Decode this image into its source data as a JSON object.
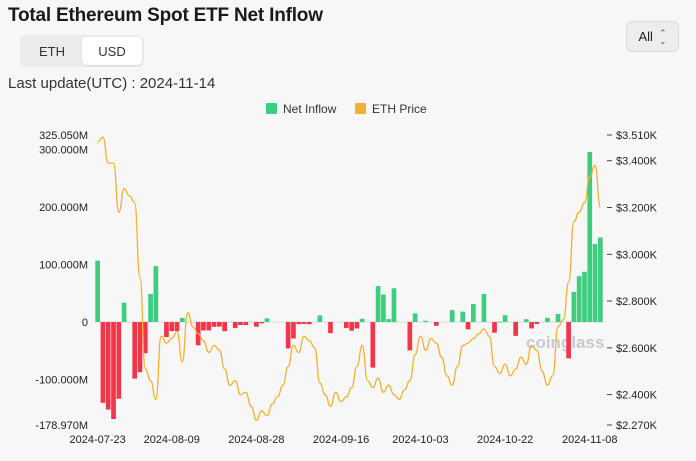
{
  "header": {
    "title": "Total Ethereum Spot ETF Net Inflow",
    "unit_tabs": [
      {
        "label": "ETH",
        "active": false
      },
      {
        "label": "USD",
        "active": true
      }
    ],
    "range_label": "All",
    "last_update": "Last update(UTC) : 2024-11-14"
  },
  "watermark": "coinglass",
  "colors": {
    "inflow_positive": "#3ecc7e",
    "inflow_negative": "#f1354a",
    "eth_price": "#f0b135",
    "background": "#f7f7f8"
  },
  "chart_data": {
    "type": "bar",
    "legend": [
      "Net Inflow",
      "ETH Price"
    ],
    "legend_position": "top-center",
    "x_ticks": [
      "2024-07-23",
      "2024-08-09",
      "2024-08-28",
      "2024-09-16",
      "2024-10-03",
      "2024-10-22",
      "2024-11-08"
    ],
    "left_axis": {
      "ticks": [
        "325.050M",
        "300.000M",
        "200.000M",
        "100.000M",
        "0",
        "-100.000M",
        "-178.970M"
      ],
      "range": [
        -178.97,
        325.05
      ],
      "unit": "M"
    },
    "right_axis": {
      "ticks": [
        "$3.510K",
        "$3.400K",
        "$3.200K",
        "$3.000K",
        "$2.800K",
        "$2.600K",
        "$2.400K",
        "$2.270K"
      ],
      "range": [
        2270,
        3510
      ]
    },
    "series": [
      {
        "name": "Net Inflow",
        "unit": "M USD",
        "values": [
          106.6,
          -140.4,
          -152.1,
          -168.6,
          -133.3,
          33.6,
          0.0,
          -98.3,
          -87.3,
          -54.4,
          48.7,
          97.2,
          0,
          -26.2,
          -15.8,
          -15.8,
          6.9,
          0,
          0,
          -40.5,
          -14.7,
          -14.6,
          -8.3,
          -8.0,
          -15.9,
          0,
          -10.2,
          -5.2,
          -5.2,
          0,
          -8.1,
          -2.3,
          6.4,
          0,
          0,
          0,
          -45.8,
          -28.6,
          -3.7,
          -3.4,
          -3.8,
          0,
          11.5,
          0,
          -19.4,
          0,
          0,
          -10.5,
          -15.1,
          -11.1,
          5.5,
          0,
          -79.3,
          62.5,
          47.7,
          5.1,
          58.7,
          0,
          0,
          -49.3,
          15.1,
          0,
          2.1,
          0,
          -6.5,
          0,
          0,
          20.7,
          0,
          18.0,
          -12.7,
          31.4,
          0,
          48.8,
          0,
          -18.6,
          0.5,
          11.9,
          0,
          -24.0,
          0,
          4.9,
          -11.1,
          -3.5,
          0,
          7.2,
          0,
          14.0,
          0,
          -63.2,
          52.3,
          79.7,
          87.4,
          295.5,
          135.8,
          146.9
        ]
      },
      {
        "name": "ETH Price",
        "unit": "USD",
        "values": [
          3480,
          3500,
          3390,
          3390,
          3180,
          3280,
          3250,
          3220,
          2900,
          2510,
          2460,
          2380,
          2650,
          2620,
          2640,
          2670,
          2540,
          2750,
          2690,
          2660,
          2630,
          2580,
          2610,
          2590,
          2510,
          2440,
          2460,
          2400,
          2410,
          2350,
          2290,
          2330,
          2310,
          2360,
          2390,
          2440,
          2520,
          2610,
          2580,
          2650,
          2630,
          2600,
          2450,
          2400,
          2350,
          2410,
          2370,
          2390,
          2430,
          2520,
          2610,
          2460,
          2430,
          2470,
          2410,
          2440,
          2400,
          2380,
          2420,
          2460,
          2570,
          2650,
          2590,
          2640,
          2620,
          2560,
          2480,
          2440,
          2520,
          2610,
          2620,
          2640,
          2660,
          2680,
          2650,
          2520,
          2490,
          2530,
          2480,
          2510,
          2560,
          2530,
          2610,
          2590,
          2500,
          2440,
          2480,
          2690,
          2720,
          2880,
          3140,
          3180,
          3220,
          3330,
          3380,
          3200
        ]
      }
    ]
  }
}
